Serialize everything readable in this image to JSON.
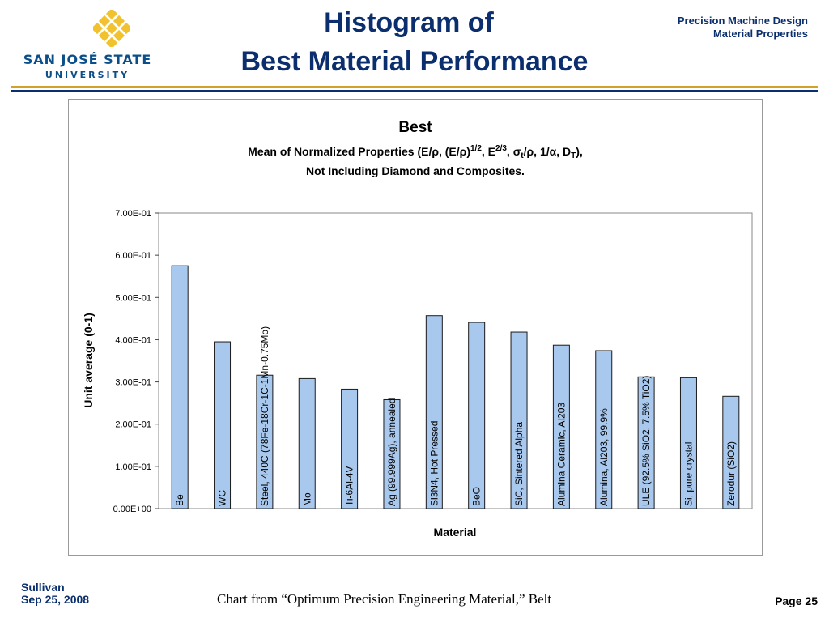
{
  "logo": {
    "line1": "SAN JOSÉ STATE",
    "line2": "UNIVERSITY",
    "color": "#0b4f8a",
    "mark_color": "#f2c12e"
  },
  "slide": {
    "title_line1": "Histogram of",
    "title_line2": "Best Material Performance",
    "header_right_line1": "Precision Machine Design",
    "header_right_line2": "Material Properties",
    "footer_author": "Sullivan",
    "footer_date": "Sep 25, 2008",
    "footer_source": "Chart from “Optimum Precision Engineering Material,” Belt",
    "page": "Page 25"
  },
  "chart_data": {
    "type": "bar",
    "title": "Best",
    "subtitle_line1_parts": [
      "Mean of Normalized Properties (E/ρ, (E/ρ)",
      "1/2",
      ", E",
      "2/3",
      ", σ",
      "t",
      "/ρ, 1/α, D",
      "T",
      "),"
    ],
    "subtitle_line2": "Not Including Diamond and Composites.",
    "xlabel": "Material",
    "ylabel": "Unit average (0-1)",
    "ylim": [
      0,
      0.7
    ],
    "y_ticks": [
      "0.00E+00",
      "1.00E-01",
      "2.00E-01",
      "3.00E-01",
      "4.00E-01",
      "5.00E-01",
      "6.00E-01",
      "7.00E-01"
    ],
    "categories": [
      "Be",
      "WC",
      "Steel, 440C (78Fe-18Cr-1C-1Mn-0.75Mo)",
      "Mo",
      "Ti-6Al-4V",
      "Ag (99.999Ag), annealed",
      "Si3N4, Hot Pressed",
      "BeO",
      "SiC, Sintered Alpha",
      "Alumina Ceramic, Al203",
      "Alumina, Al203, 99.9%",
      "ULE (92.5% SiO2, 7.5% TiO2)",
      "Si, pure crystal",
      "Zerodur (SiO2)"
    ],
    "values": [
      0.575,
      0.395,
      0.316,
      0.308,
      0.283,
      0.258,
      0.457,
      0.441,
      0.418,
      0.387,
      0.374,
      0.312,
      0.31,
      0.266
    ],
    "bar_color": "#a9c8ee",
    "grid": false,
    "legend": "none"
  }
}
